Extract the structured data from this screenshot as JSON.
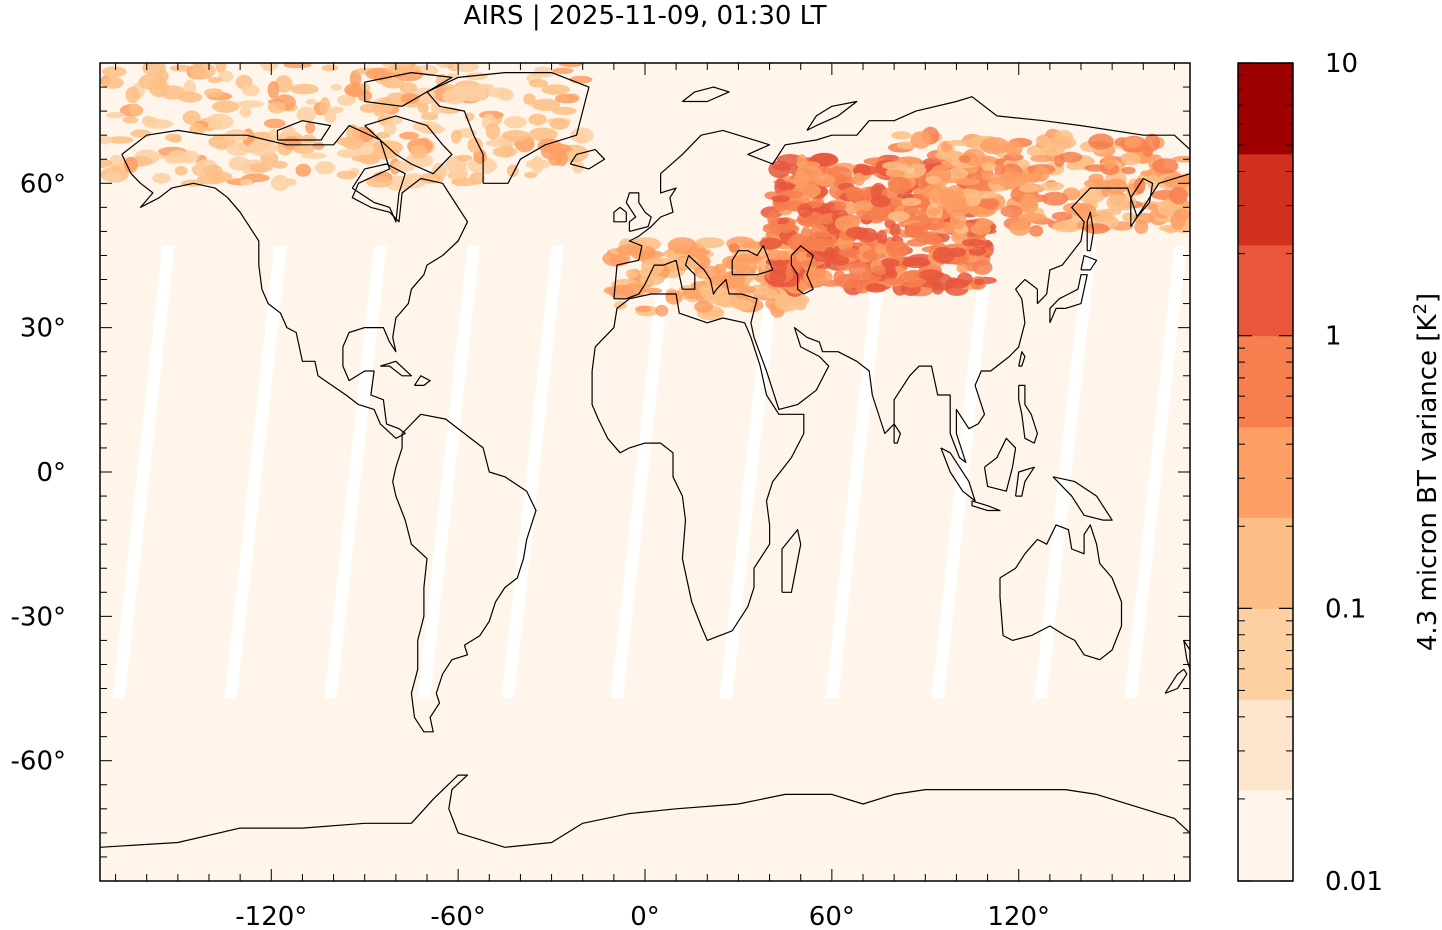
{
  "chart_data": {
    "type": "heatmap",
    "title": "AIRS | 2025-11-09, 01:30 LT",
    "projection": "equirectangular",
    "xlim": [
      -175,
      175
    ],
    "ylim": [
      -85,
      85
    ],
    "x_ticks": [
      -120,
      -60,
      0,
      60,
      120
    ],
    "x_tick_labels": [
      "-120°",
      "-60°",
      "0°",
      "60°",
      "120°"
    ],
    "y_ticks": [
      60,
      30,
      0,
      -30,
      -60
    ],
    "y_tick_labels": [
      "60°",
      "30°",
      "0°",
      "-30°",
      "-60°"
    ],
    "colorbar": {
      "label_prefix": "4.3 micron BT variance [K",
      "label_sup": "2",
      "label_suffix": "]",
      "scale": "log",
      "range": [
        0.01,
        10
      ],
      "tick_values": [
        10,
        1,
        0.1,
        0.01
      ],
      "tick_labels": [
        "10",
        "1",
        "0.1",
        "0.01"
      ],
      "bin_colors": [
        "#fff5eb",
        "#fee6ce",
        "#fdd0a2",
        "#fdbe85",
        "#fd9f64",
        "#f77f4f",
        "#e8573c",
        "#d1301f",
        "#9e0000"
      ]
    },
    "background_color": "#fff5eb",
    "regions_high_variance": [
      {
        "lon_range": [
          -175,
          -20
        ],
        "lat_range": [
          60,
          85
        ],
        "level_range": [
          0.05,
          0.3
        ]
      },
      {
        "lon_range": [
          -10,
          50
        ],
        "lat_range": [
          33,
          48
        ],
        "level_range": [
          0.1,
          0.5
        ]
      },
      {
        "lon_range": [
          40,
          110
        ],
        "lat_range": [
          38,
          65
        ],
        "level_range": [
          0.3,
          2.0
        ]
      },
      {
        "lon_range": [
          80,
          175
        ],
        "lat_range": [
          50,
          70
        ],
        "level_range": [
          0.1,
          0.8
        ]
      }
    ],
    "grid": false
  }
}
